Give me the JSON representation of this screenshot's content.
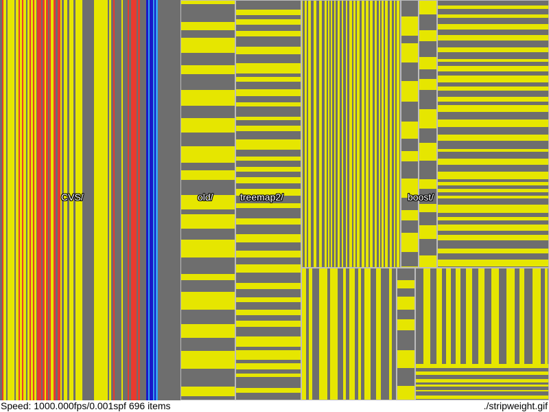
{
  "treemap": {
    "labels": {
      "cvs": "CVS/",
      "old": "old/",
      "treemap2": "treemap2/",
      "boost": "boost/"
    }
  },
  "status": {
    "speed": "Speed: 1000.000fps/0.001spf",
    "items": "696 items",
    "file": "./stripweight.gif"
  },
  "colors": {
    "yellow": "#e6e600",
    "gray": "#6e6e6e",
    "red": "#e83a2e",
    "blue": "#1818c8",
    "light_blue": "#33a0f0",
    "frame": "#bdbdbd",
    "background": "#ffffff"
  }
}
